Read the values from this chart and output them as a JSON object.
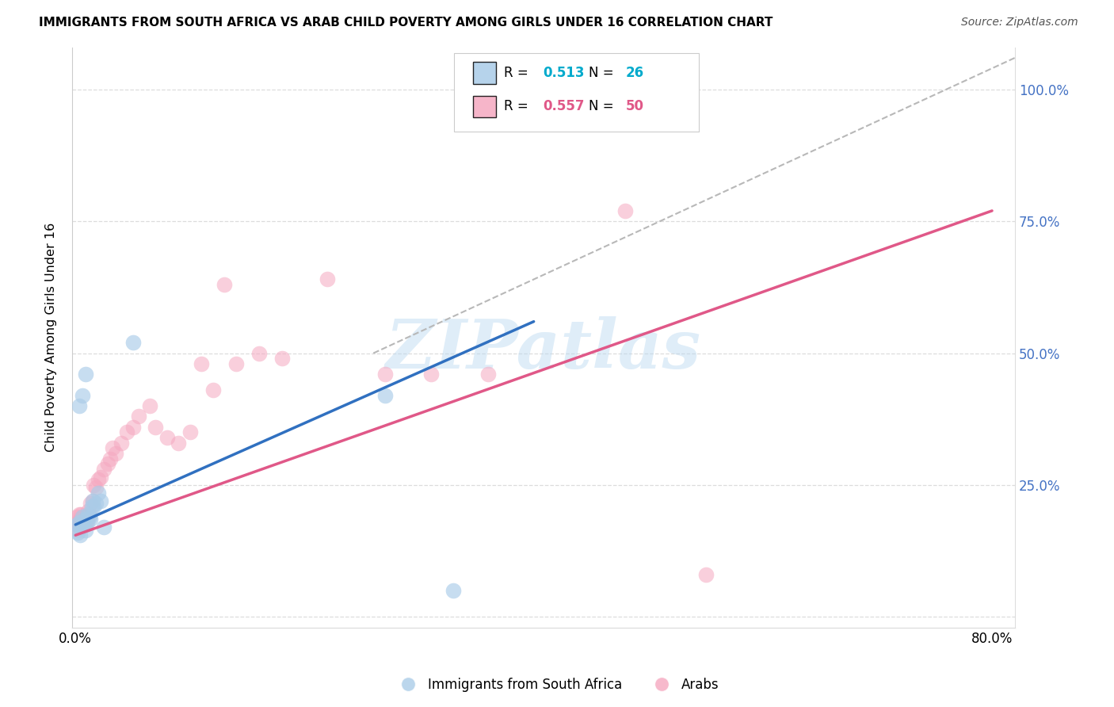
{
  "title": "IMMIGRANTS FROM SOUTH AFRICA VS ARAB CHILD POVERTY AMONG GIRLS UNDER 16 CORRELATION CHART",
  "source": "Source: ZipAtlas.com",
  "ylabel": "Child Poverty Among Girls Under 16",
  "xlim": [
    -0.003,
    0.82
  ],
  "ylim": [
    -0.02,
    1.08
  ],
  "color_blue": "#aacce8",
  "color_pink": "#f5a8c0",
  "color_blue_line": "#3070c0",
  "color_pink_line": "#e05888",
  "color_dash": "#b8b8b8",
  "color_yright": "#4472c4",
  "color_legend_val": "#00b0b0",
  "watermark": "ZIPatlas",
  "legend_r1": "R = 0.513",
  "legend_n1": "N = 26",
  "legend_r2": "R = 0.557",
  "legend_n2": "N = 50",
  "blue_x": [
    0.001,
    0.002,
    0.003,
    0.004,
    0.005,
    0.006,
    0.007,
    0.008,
    0.009,
    0.01,
    0.011,
    0.012,
    0.013,
    0.014,
    0.015,
    0.016,
    0.018,
    0.02,
    0.022,
    0.025,
    0.003,
    0.006,
    0.009,
    0.05,
    0.27,
    0.33
  ],
  "blue_y": [
    0.175,
    0.16,
    0.18,
    0.155,
    0.17,
    0.19,
    0.175,
    0.185,
    0.165,
    0.18,
    0.195,
    0.19,
    0.185,
    0.21,
    0.22,
    0.21,
    0.215,
    0.235,
    0.22,
    0.17,
    0.4,
    0.42,
    0.46,
    0.52,
    0.42,
    0.05
  ],
  "pink_x": [
    0.001,
    0.001,
    0.002,
    0.002,
    0.003,
    0.003,
    0.004,
    0.004,
    0.005,
    0.005,
    0.006,
    0.006,
    0.007,
    0.008,
    0.009,
    0.01,
    0.011,
    0.012,
    0.013,
    0.015,
    0.016,
    0.018,
    0.02,
    0.022,
    0.025,
    0.028,
    0.03,
    0.032,
    0.035,
    0.04,
    0.045,
    0.05,
    0.055,
    0.065,
    0.07,
    0.08,
    0.09,
    0.1,
    0.11,
    0.12,
    0.13,
    0.14,
    0.16,
    0.18,
    0.22,
    0.27,
    0.31,
    0.36,
    0.48,
    0.55
  ],
  "pink_y": [
    0.175,
    0.19,
    0.165,
    0.18,
    0.175,
    0.195,
    0.17,
    0.185,
    0.18,
    0.195,
    0.175,
    0.19,
    0.185,
    0.19,
    0.175,
    0.185,
    0.2,
    0.195,
    0.215,
    0.22,
    0.25,
    0.245,
    0.26,
    0.265,
    0.28,
    0.29,
    0.3,
    0.32,
    0.31,
    0.33,
    0.35,
    0.36,
    0.38,
    0.4,
    0.36,
    0.34,
    0.33,
    0.35,
    0.48,
    0.43,
    0.63,
    0.48,
    0.5,
    0.49,
    0.64,
    0.46,
    0.46,
    0.46,
    0.77,
    0.08
  ],
  "blue_line_x": [
    0.0,
    0.4
  ],
  "blue_line_y": [
    0.175,
    0.56
  ],
  "pink_line_x": [
    0.0,
    0.8
  ],
  "pink_line_y": [
    0.155,
    0.77
  ],
  "dash_line_x": [
    0.26,
    0.82
  ],
  "dash_line_y": [
    0.5,
    1.06
  ]
}
